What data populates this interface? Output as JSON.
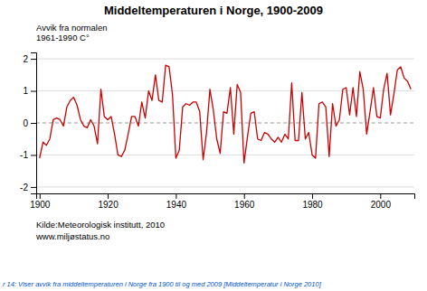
{
  "chart_data": {
    "type": "line",
    "title": "Middeltemperaturen i Norge, 1900-2009",
    "ylabel": [
      "Avvik fra normalen",
      "1961-1990  C°"
    ],
    "annotations": [
      "Kilde:Meteorologisk institutt, 2010",
      "www.miljøstatus.no",
      "r 14: Viser avvik fra middeltemperaturen i Norge fra 1900 til og med 2009 [Middeltemperatur i Norge  2010]"
    ],
    "color": "#cc0000",
    "grid": true,
    "xlim": [
      1899,
      2010
    ],
    "xticks": [
      1900,
      1920,
      1940,
      1960,
      1980,
      2000
    ],
    "ylim": [
      -2.2,
      2.2
    ],
    "yticks": [
      -2,
      -1,
      0,
      1,
      2
    ],
    "x": [
      1900,
      1901,
      1902,
      1903,
      1904,
      1905,
      1906,
      1907,
      1908,
      1909,
      1910,
      1911,
      1912,
      1913,
      1914,
      1915,
      1916,
      1917,
      1918,
      1919,
      1920,
      1921,
      1922,
      1923,
      1924,
      1925,
      1926,
      1927,
      1928,
      1929,
      1930,
      1931,
      1932,
      1933,
      1934,
      1935,
      1936,
      1937,
      1938,
      1939,
      1940,
      1941,
      1942,
      1943,
      1944,
      1945,
      1946,
      1947,
      1948,
      1949,
      1950,
      1951,
      1952,
      1953,
      1954,
      1955,
      1956,
      1957,
      1958,
      1959,
      1960,
      1961,
      1962,
      1963,
      1964,
      1965,
      1966,
      1967,
      1968,
      1969,
      1970,
      1971,
      1972,
      1973,
      1974,
      1975,
      1976,
      1977,
      1978,
      1979,
      1980,
      1981,
      1982,
      1983,
      1984,
      1985,
      1986,
      1987,
      1988,
      1989,
      1990,
      1991,
      1992,
      1993,
      1994,
      1995,
      1996,
      1997,
      1998,
      1999,
      2000,
      2001,
      2002,
      2003,
      2004,
      2005,
      2006,
      2007,
      2008,
      2009
    ],
    "values": [
      -1.1,
      -0.6,
      -0.7,
      -0.5,
      0.1,
      0.15,
      0.1,
      -0.1,
      0.5,
      0.7,
      0.8,
      0.55,
      0.1,
      -0.1,
      -0.15,
      0.1,
      -0.1,
      -0.65,
      1.05,
      0.2,
      0.1,
      0.2,
      -0.35,
      -1.0,
      -1.05,
      -0.85,
      -0.35,
      0.2,
      0.2,
      -0.1,
      0.65,
      0.15,
      1.0,
      0.7,
      1.5,
      0.7,
      0.65,
      1.8,
      1.75,
      0.9,
      -1.1,
      -0.85,
      0.5,
      0.6,
      0.55,
      0.65,
      0.65,
      0.35,
      -1.15,
      -0.3,
      1.05,
      0.4,
      -0.5,
      -0.95,
      0.35,
      0.3,
      1.1,
      -0.35,
      1.2,
      0.95,
      -1.25,
      -0.45,
      0.3,
      0.35,
      -0.5,
      -0.55,
      -0.3,
      -0.35,
      -0.5,
      -0.6,
      -0.45,
      -0.6,
      -0.35,
      -0.5,
      1.25,
      -0.55,
      -0.55,
      0.95,
      -0.5,
      -0.3,
      -1.0,
      -1.1,
      0.6,
      0.65,
      0.5,
      -1.05,
      0.6,
      -0.1,
      0.1,
      1.05,
      1.1,
      0.25,
      1.1,
      0.2,
      1.6,
      1.05,
      -0.35,
      0.35,
      1.1,
      0.2,
      0.15,
      1.05,
      1.55,
      0.25,
      0.9,
      1.65,
      1.75,
      1.4,
      1.3,
      1.05
    ]
  }
}
